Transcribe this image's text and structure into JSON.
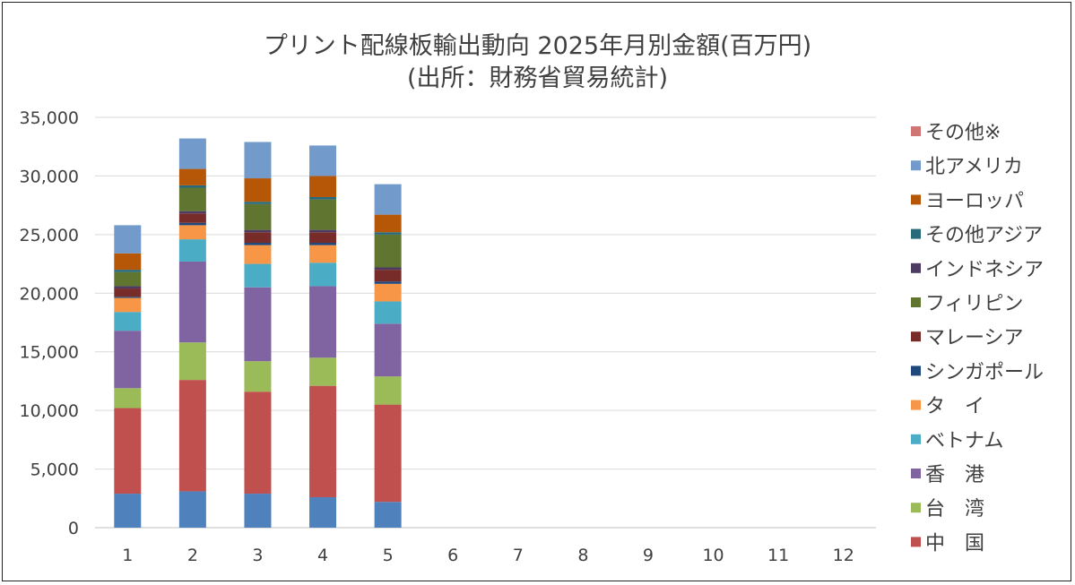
{
  "chart_data": {
    "type": "bar",
    "stacked": true,
    "title": "プリント配線板輸出動向 2025年月別金額(百万円)",
    "subtitle": "(出所：財務省貿易統計)",
    "categories": [
      "1",
      "2",
      "3",
      "4",
      "5",
      "6",
      "7",
      "8",
      "9",
      "10",
      "11",
      "12"
    ],
    "ylim": [
      0,
      35000
    ],
    "yticks": [
      0,
      5000,
      10000,
      15000,
      20000,
      25000,
      30000,
      35000
    ],
    "ytick_labels": [
      "0",
      "5,000",
      "10,000",
      "15,000",
      "20,000",
      "25,000",
      "30,000",
      "35,000"
    ],
    "grid": true,
    "legend_position": "right",
    "series": [
      {
        "name": "",
        "color": "#4f81bd",
        "values": [
          2900,
          3100,
          2900,
          2600,
          2200,
          null,
          null,
          null,
          null,
          null,
          null,
          null
        ]
      },
      {
        "name": "中　国",
        "color": "#c0504d",
        "values": [
          7300,
          9500,
          8700,
          9500,
          8300,
          null,
          null,
          null,
          null,
          null,
          null,
          null
        ]
      },
      {
        "name": "台　湾",
        "color": "#9bbb59",
        "values": [
          1700,
          3200,
          2600,
          2400,
          2400,
          null,
          null,
          null,
          null,
          null,
          null,
          null
        ]
      },
      {
        "name": "香　港",
        "color": "#8064a2",
        "values": [
          4900,
          6900,
          6300,
          6100,
          4500,
          null,
          null,
          null,
          null,
          null,
          null,
          null
        ]
      },
      {
        "name": "ベトナム",
        "color": "#4bacc6",
        "values": [
          1600,
          1900,
          2000,
          2000,
          1900,
          null,
          null,
          null,
          null,
          null,
          null,
          null
        ]
      },
      {
        "name": "タ　イ",
        "color": "#f79646",
        "values": [
          1200,
          1200,
          1600,
          1500,
          1500,
          null,
          null,
          null,
          null,
          null,
          null,
          null
        ]
      },
      {
        "name": "シンガポール",
        "color": "#1f497d",
        "values": [
          100,
          200,
          200,
          200,
          200,
          null,
          null,
          null,
          null,
          null,
          null,
          null
        ]
      },
      {
        "name": "マレーシア",
        "color": "#772c2a",
        "values": [
          700,
          800,
          900,
          900,
          1000,
          null,
          null,
          null,
          null,
          null,
          null,
          null
        ]
      },
      {
        "name": "インドネシア",
        "color": "#4d3b62",
        "values": [
          200,
          200,
          200,
          200,
          200,
          null,
          null,
          null,
          null,
          null,
          null,
          null
        ]
      },
      {
        "name": "フィリピン",
        "color": "#5f7530",
        "values": [
          1200,
          2000,
          2200,
          2600,
          2800,
          null,
          null,
          null,
          null,
          null,
          null,
          null
        ]
      },
      {
        "name": "その他アジア",
        "color": "#276a7c",
        "values": [
          200,
          200,
          200,
          200,
          200,
          null,
          null,
          null,
          null,
          null,
          null,
          null
        ]
      },
      {
        "name": "ヨーロッパ",
        "color": "#b65708",
        "values": [
          1400,
          1400,
          2000,
          1800,
          1500,
          null,
          null,
          null,
          null,
          null,
          null,
          null
        ]
      },
      {
        "name": "北アメリカ",
        "color": "#729aca",
        "values": [
          2400,
          2600,
          3100,
          2600,
          2600,
          null,
          null,
          null,
          null,
          null,
          null,
          null
        ]
      },
      {
        "name": "その他※",
        "color": "#d07575",
        "values": [
          0,
          0,
          0,
          0,
          0,
          null,
          null,
          null,
          null,
          null,
          null,
          null
        ]
      }
    ],
    "legend": [
      "その他※",
      "北アメリカ",
      "ヨーロッパ",
      "その他アジア",
      "インドネシア",
      "フィリピン",
      "マレーシア",
      "シンガポール",
      "タ　イ",
      "ベトナム",
      "香　港",
      "台　湾",
      "中　国"
    ]
  }
}
